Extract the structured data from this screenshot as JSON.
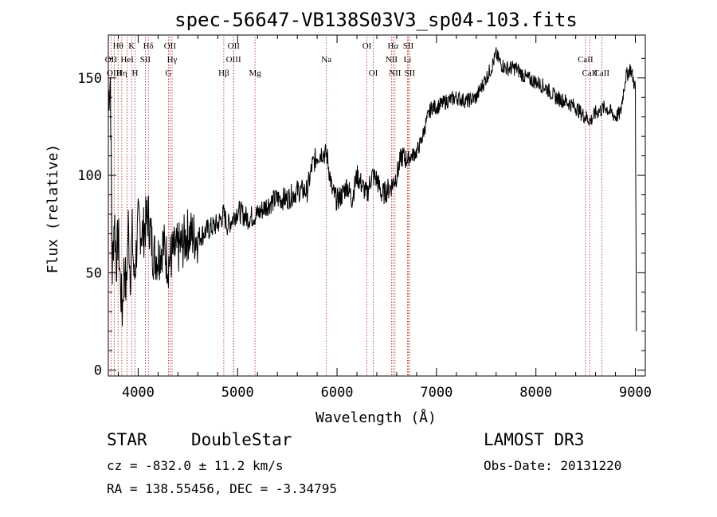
{
  "chart_data": {
    "type": "line",
    "title": "spec-56647-VB138S03V3_sp04-103.fits",
    "xlabel": "Wavelength (Å)",
    "ylabel": "Flux (relative)",
    "xlim": [
      3700,
      9100
    ],
    "ylim": [
      -3,
      172
    ],
    "xticks": [
      4000,
      5000,
      6000,
      7000,
      8000,
      9000
    ],
    "yticks": [
      0,
      50,
      100,
      150
    ],
    "series": [
      {
        "name": "flux",
        "x": [
          3700,
          3720,
          3740,
          3760,
          3780,
          3800,
          3820,
          3840,
          3860,
          3880,
          3900,
          3920,
          3940,
          3960,
          3980,
          4000,
          4050,
          4100,
          4150,
          4200,
          4250,
          4300,
          4350,
          4400,
          4450,
          4500,
          4600,
          4700,
          4800,
          4860,
          4900,
          5000,
          5100,
          5200,
          5300,
          5400,
          5500,
          5600,
          5700,
          5750,
          5800,
          5850,
          5900,
          5950,
          6000,
          6050,
          6100,
          6150,
          6200,
          6250,
          6300,
          6350,
          6400,
          6450,
          6500,
          6550,
          6600,
          6650,
          6700,
          6750,
          6800,
          6850,
          6900,
          6950,
          7000,
          7100,
          7200,
          7300,
          7400,
          7500,
          7550,
          7600,
          7650,
          7700,
          7800,
          7900,
          8000,
          8100,
          8200,
          8300,
          8400,
          8450,
          8500,
          8550,
          8600,
          8700,
          8800,
          8850,
          8900,
          8950,
          9000,
          9010
        ],
        "y": [
          140,
          150,
          50,
          80,
          55,
          70,
          45,
          30,
          55,
          40,
          75,
          50,
          70,
          45,
          60,
          75,
          70,
          80,
          60,
          58,
          65,
          55,
          60,
          62,
          65,
          70,
          68,
          72,
          75,
          80,
          74,
          82,
          78,
          80,
          85,
          88,
          88,
          92,
          92,
          105,
          110,
          112,
          110,
          92,
          87,
          90,
          95,
          88,
          100,
          95,
          90,
          100,
          98,
          90,
          92,
          95,
          100,
          110,
          108,
          110,
          112,
          118,
          128,
          135,
          135,
          138,
          140,
          138,
          140,
          150,
          155,
          162,
          157,
          155,
          155,
          150,
          148,
          145,
          140,
          138,
          135,
          132,
          130,
          128,
          132,
          135,
          130,
          132,
          150,
          155,
          145,
          20
        ]
      }
    ],
    "lines_row1": [
      {
        "label": "Hθ",
        "x": 3798
      },
      {
        "label": "K",
        "x": 3934
      },
      {
        "label": "Hδ",
        "x": 4102
      },
      {
        "label": "OII",
        "x": 4320
      },
      {
        "label": "OII",
        "x": 4960
      },
      {
        "label": "OI",
        "x": 6300
      },
      {
        "label": "Hα",
        "x": 6563
      },
      {
        "label": "SII",
        "x": 6716
      }
    ],
    "lines_row2": [
      {
        "label": "OII",
        "x": 3727
      },
      {
        "label": "HeI",
        "x": 3889
      },
      {
        "label": "SII",
        "x": 4072
      },
      {
        "label": "Hγ",
        "x": 4341
      },
      {
        "label": "OIII",
        "x": 4959
      },
      {
        "label": "Na",
        "x": 5893
      },
      {
        "label": "NII",
        "x": 6548
      },
      {
        "label": "Li",
        "x": 6708
      },
      {
        "label": "CaII",
        "x": 8498
      }
    ],
    "lines_row3": [
      {
        "label": "OIII",
        "x": 3760
      },
      {
        "label": "Hη",
        "x": 3835
      },
      {
        "label": "H",
        "x": 3968
      },
      {
        "label": "G",
        "x": 4304
      },
      {
        "label": "Hβ",
        "x": 4861
      },
      {
        "label": "Mg",
        "x": 5175
      },
      {
        "label": "OI",
        "x": 6364
      },
      {
        "label": "NII",
        "x": 6583
      },
      {
        "label": "SII",
        "x": 6731
      },
      {
        "label": "CaII",
        "x": 8542
      },
      {
        "label": "CaII",
        "x": 8662
      }
    ]
  },
  "info": {
    "class_label": "STAR",
    "subclass_label": "DoubleStar",
    "survey": "LAMOST DR3",
    "cz": "cz = -832.0 ± 11.2 km/s",
    "obs_date": "Obs-Date: 20131220",
    "radec": "RA = 138.55456, DEC =  -3.34795"
  }
}
